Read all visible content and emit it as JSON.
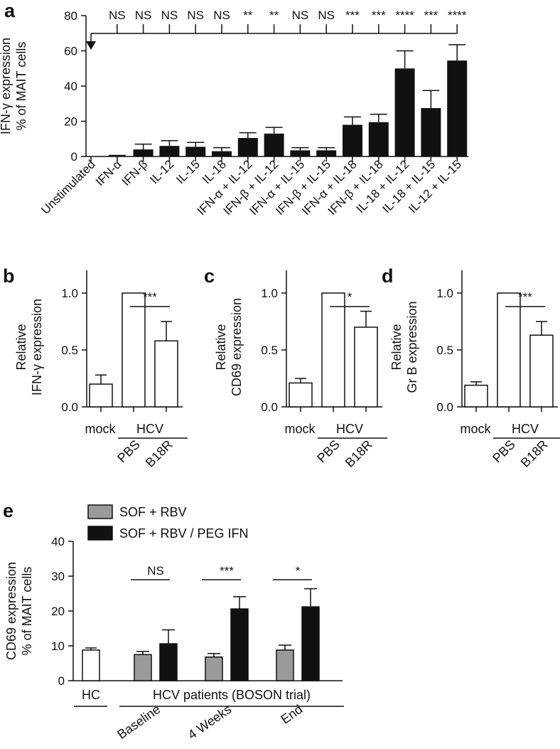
{
  "chart_data": [
    {
      "panel": "a",
      "type": "bar",
      "ylabel": [
        "IFN-γ expression",
        "% of MAIT cells"
      ],
      "ylim": [
        0,
        80
      ],
      "yticks": [
        0,
        20,
        40,
        60,
        80
      ],
      "categories": [
        "Unstimulated",
        "IFN-α",
        "IFN-β",
        "IL-12",
        "IL-15",
        "IL-18",
        "IFN-α + IL-12",
        "IFN-β + IL-12",
        "IFN-α + IL-15",
        "IFN-β + IL-15",
        "IFN-α + IL-18",
        "IFN-β + IL-18",
        "IL-18 + IL-12",
        "IL-18 + IL-15",
        "IL-12 + IL-15"
      ],
      "values": [
        0,
        0.3,
        4,
        6,
        5.5,
        3,
        10.5,
        13,
        3.5,
        3.5,
        18,
        19.5,
        50,
        27.5,
        54.5
      ],
      "errors": [
        0,
        0.3,
        3,
        3,
        2.5,
        2,
        3,
        3.5,
        1.5,
        1.5,
        4.5,
        4.5,
        10,
        10,
        9
      ],
      "significance": [
        "NS",
        "NS",
        "NS",
        "NS",
        "NS",
        "**",
        "**",
        "NS",
        "NS",
        "***",
        "***",
        "****",
        "***",
        "****"
      ],
      "reference": "Unstimulated"
    },
    {
      "panel": "b",
      "type": "bar",
      "ylabel": [
        "Relative",
        "IFN-γ expression"
      ],
      "ylim": [
        0,
        1.2
      ],
      "yticks": [
        "0.0",
        "0.5",
        "1.0"
      ],
      "categories": [
        "mock",
        "PBS",
        "B18R"
      ],
      "values": [
        0.2,
        1.0,
        0.58
      ],
      "errors": [
        0.08,
        0,
        0.17
      ],
      "group_label": "HCV",
      "significance": "***"
    },
    {
      "panel": "c",
      "type": "bar",
      "ylabel": [
        "Relative",
        "CD69 expression"
      ],
      "ylim": [
        0,
        1.2
      ],
      "yticks": [
        "0.0",
        "0.5",
        "1.0"
      ],
      "categories": [
        "mock",
        "PBS",
        "B18R"
      ],
      "values": [
        0.21,
        1.0,
        0.7
      ],
      "errors": [
        0.04,
        0,
        0.14
      ],
      "group_label": "HCV",
      "significance": "*"
    },
    {
      "panel": "d",
      "type": "bar",
      "ylabel": [
        "Relative",
        "Gr B expression"
      ],
      "ylim": [
        0,
        1.2
      ],
      "yticks": [
        "0.0",
        "0.5",
        "1.0"
      ],
      "categories": [
        "mock",
        "PBS",
        "B18R"
      ],
      "values": [
        0.19,
        1.0,
        0.63
      ],
      "errors": [
        0.03,
        0,
        0.12
      ],
      "group_label": "HCV",
      "significance": "***"
    },
    {
      "panel": "e",
      "type": "bar",
      "ylabel": [
        "CD69 expression",
        "% of MAIT cells"
      ],
      "ylim": [
        0,
        40
      ],
      "yticks": [
        0,
        10,
        20,
        30,
        40
      ],
      "legend": [
        "SOF + RBV",
        "SOF + RBV / PEG IFN"
      ],
      "hc": {
        "label": "HC",
        "value": 8.8,
        "error": 0.6
      },
      "patients_label": "HCV patients (BOSON trial)",
      "timepoints": [
        "Baseline",
        "4 Weeks",
        "End"
      ],
      "series": [
        {
          "name": "SOF + RBV",
          "color": "#9a9a9a",
          "values": [
            7.5,
            6.8,
            8.8
          ],
          "errors": [
            0.9,
            1.0,
            1.4
          ]
        },
        {
          "name": "SOF + RBV / PEG IFN",
          "color": "#111111",
          "values": [
            10.6,
            20.6,
            21.2
          ],
          "errors": [
            4,
            3.5,
            5.2
          ]
        }
      ],
      "significance": [
        "NS",
        "***",
        "*"
      ]
    }
  ]
}
